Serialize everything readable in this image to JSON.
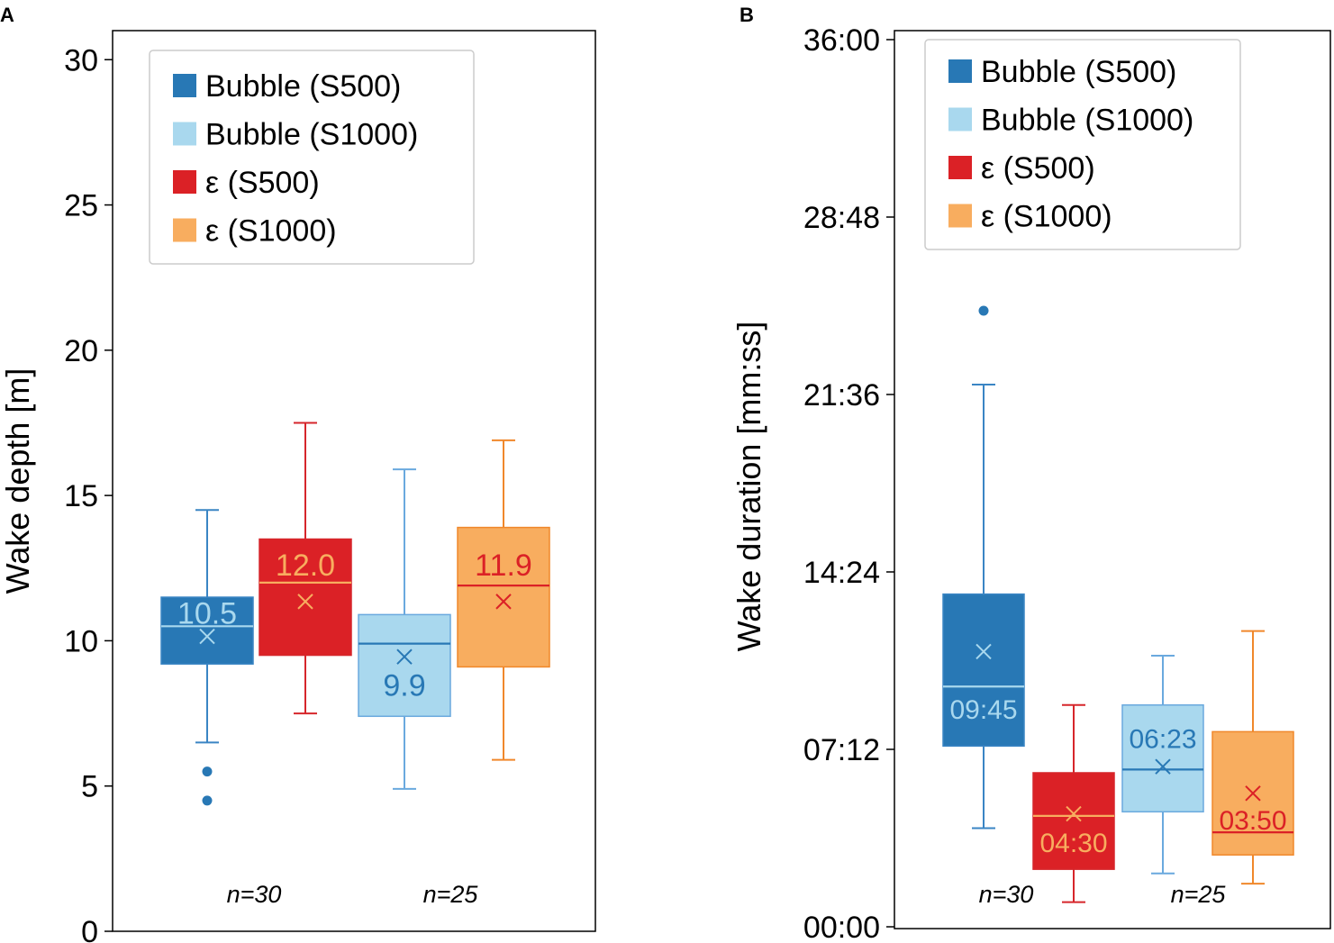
{
  "colors": {
    "bubble_s500": "#2878b5",
    "bubble_s1000": "#a9d8ee",
    "eps_s500": "#db2126",
    "eps_s1000": "#f8ad5f",
    "bubble_s500_line": "#3a85c4",
    "bubble_s1000_line": "#6aa9de",
    "eps_s500_line": "#d6262b",
    "eps_s1000_line": "#f0882b"
  },
  "chart_data": [
    {
      "panel": "A",
      "type": "boxplot",
      "ylabel": "Wake depth [m]",
      "ylim": [
        0,
        31
      ],
      "yticks": [
        0,
        5,
        10,
        15,
        20,
        25,
        30
      ],
      "ytick_labels": [
        "0",
        "5",
        "10",
        "15",
        "20",
        "25",
        "30"
      ],
      "legend": [
        "Bubble (S500)",
        "Bubble (S1000)",
        "ε (S500)",
        "ε  (S1000)"
      ],
      "legend_location": "upper-left",
      "groups": [
        "n=30",
        "n=25"
      ],
      "boxes": [
        {
          "series": "Bubble (S500)",
          "whisker_low": 6.5,
          "q1": 9.2,
          "median": 10.5,
          "q3": 11.5,
          "whisker_high": 14.5,
          "mean": 10.15,
          "outliers": [
            5.5,
            4.5
          ],
          "label": "10.5"
        },
        {
          "series": "ε (S500)",
          "whisker_low": 7.5,
          "q1": 9.5,
          "median": 12.0,
          "q3": 13.5,
          "whisker_high": 17.5,
          "mean": 11.35,
          "outliers": [],
          "label": "12.0"
        },
        {
          "series": "Bubble (S1000)",
          "whisker_low": 4.9,
          "q1": 7.4,
          "median": 9.9,
          "q3": 10.9,
          "whisker_high": 15.9,
          "mean": 9.45,
          "outliers": [],
          "label": "9.9"
        },
        {
          "series": "ε  (S1000)",
          "whisker_low": 5.9,
          "q1": 9.1,
          "median": 11.9,
          "q3": 13.9,
          "whisker_high": 16.9,
          "mean": 11.35,
          "outliers": [],
          "label": "11.9"
        }
      ]
    },
    {
      "panel": "B",
      "type": "boxplot",
      "ylabel": "Wake duration [mm:ss]",
      "ylim_seconds": [
        0,
        2160
      ],
      "yticks_seconds": [
        0,
        432,
        864,
        1296,
        1728,
        2160
      ],
      "ytick_labels": [
        "00:00",
        "07:12",
        "14:24",
        "21:36",
        "28:48",
        "36:00"
      ],
      "legend": [
        "Bubble (S500)",
        "Bubble (S1000)",
        "ε (S500)",
        "ε (S1000)"
      ],
      "legend_location": "upper-left",
      "groups": [
        "n=30",
        "n=25"
      ],
      "boxes": [
        {
          "series": "Bubble (S500)",
          "whisker_low_s": 240,
          "q1_s": 440,
          "median_s": 585,
          "q3_s": 810,
          "whisker_high_s": 1320,
          "mean_s": 670,
          "outliers_s": [
            1500
          ],
          "label": "09:45"
        },
        {
          "series": "ε (S500)",
          "whisker_low_s": 60,
          "q1_s": 140,
          "median_s": 270,
          "q3_s": 375,
          "whisker_high_s": 540,
          "mean_s": 275,
          "outliers_s": [],
          "label": "04:30"
        },
        {
          "series": "Bubble (S1000)",
          "whisker_low_s": 130,
          "q1_s": 280,
          "median_s": 383,
          "q3_s": 540,
          "whisker_high_s": 660,
          "mean_s": 390,
          "outliers_s": [],
          "label": "06:23"
        },
        {
          "series": "ε (S1000)",
          "whisker_low_s": 105,
          "q1_s": 175,
          "median_s": 230,
          "q3_s": 475,
          "whisker_high_s": 720,
          "mean_s": 325,
          "outliers_s": [],
          "label": "03:50"
        }
      ]
    }
  ]
}
